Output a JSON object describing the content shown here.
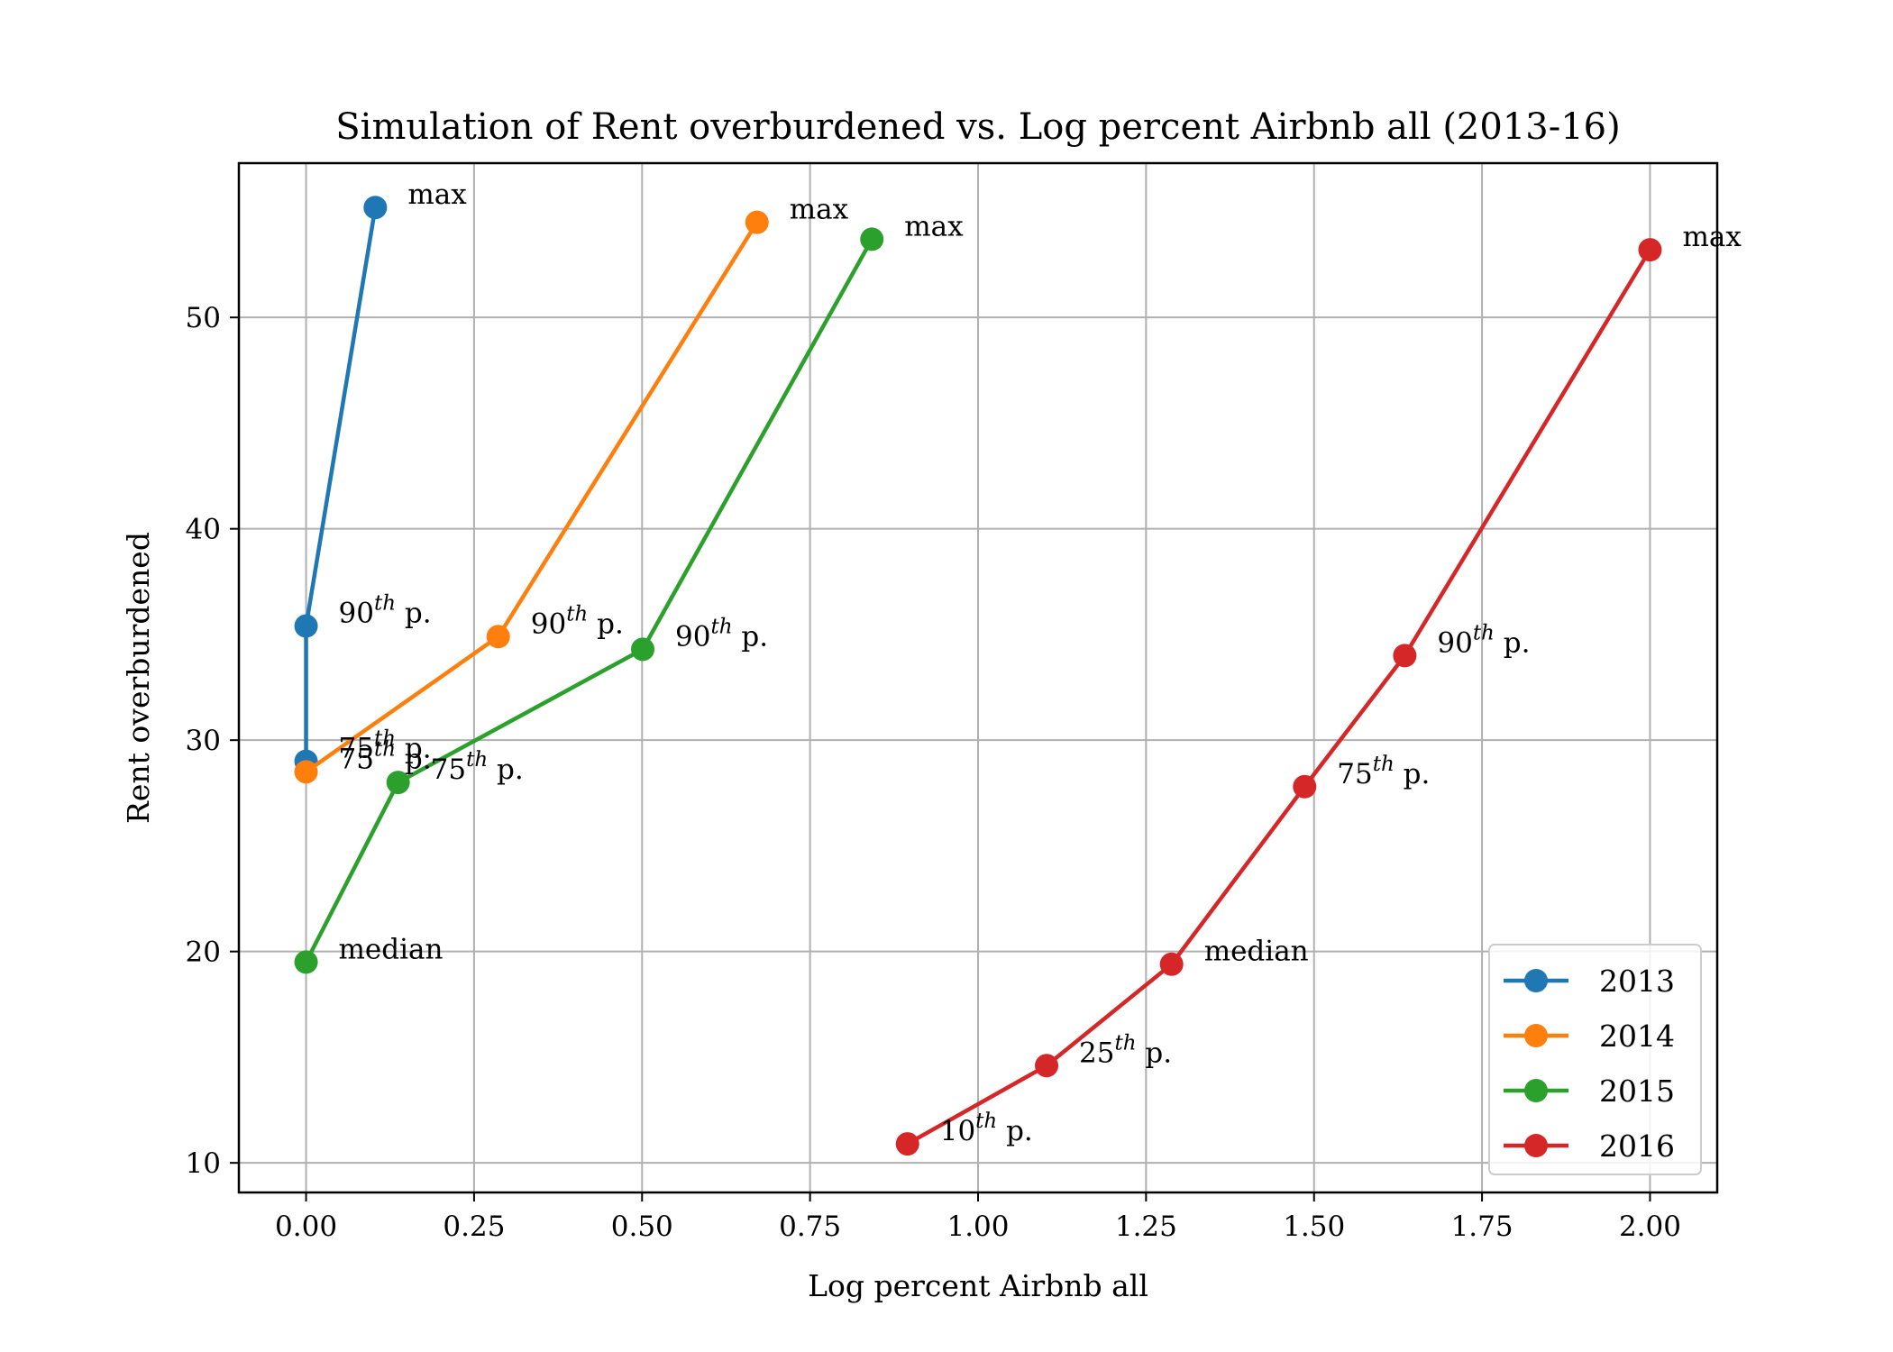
{
  "chart_data": {
    "type": "line",
    "title": "Simulation of Rent overburdened vs. Log percent Airbnb all (2013-16)",
    "xlabel": "Log percent Airbnb all",
    "ylabel": "Rent overburdened",
    "xlim": [
      -0.1,
      2.1
    ],
    "ylim": [
      8.6,
      57.3
    ],
    "xticks": [
      0.0,
      0.25,
      0.5,
      0.75,
      1.0,
      1.25,
      1.5,
      1.75,
      2.0
    ],
    "xtick_labels": [
      "0.00",
      "0.25",
      "0.50",
      "0.75",
      "1.00",
      "1.25",
      "1.50",
      "1.75",
      "2.00"
    ],
    "yticks": [
      10,
      20,
      30,
      40,
      50
    ],
    "ytick_labels": [
      "10",
      "20",
      "30",
      "40",
      "50"
    ],
    "grid": true,
    "legend_position": "lower-right",
    "series": [
      {
        "name": "2013",
        "color": "#1f77b4",
        "points": [
          {
            "x": 0.0,
            "y": 29.0,
            "label": "75",
            "sup": "th",
            "suffix": " p."
          },
          {
            "x": 0.0,
            "y": 35.4,
            "label": "90",
            "sup": "th",
            "suffix": " p."
          },
          {
            "x": 0.103,
            "y": 55.2,
            "label": "max",
            "sup": "",
            "suffix": ""
          }
        ]
      },
      {
        "name": "2014",
        "color": "#ff7f0e",
        "points": [
          {
            "x": 0.0,
            "y": 28.5,
            "label": "75",
            "sup": "th",
            "suffix": " p."
          },
          {
            "x": 0.286,
            "y": 34.9,
            "label": "90",
            "sup": "th",
            "suffix": " p."
          },
          {
            "x": 0.671,
            "y": 54.5,
            "label": "max",
            "sup": "",
            "suffix": ""
          }
        ]
      },
      {
        "name": "2015",
        "color": "#2ca02c",
        "points": [
          {
            "x": 0.0,
            "y": 19.5,
            "label": "median",
            "sup": "",
            "suffix": ""
          },
          {
            "x": 0.137,
            "y": 28.0,
            "label": "75",
            "sup": "th",
            "suffix": " p."
          },
          {
            "x": 0.501,
            "y": 34.3,
            "label": "90",
            "sup": "th",
            "suffix": " p."
          },
          {
            "x": 0.842,
            "y": 53.7,
            "label": "max",
            "sup": "",
            "suffix": ""
          }
        ]
      },
      {
        "name": "2016",
        "color": "#d62728",
        "points": [
          {
            "x": 0.895,
            "y": 10.9,
            "label": "10",
            "sup": "th",
            "suffix": " p."
          },
          {
            "x": 1.102,
            "y": 14.6,
            "label": "25",
            "sup": "th",
            "suffix": " p."
          },
          {
            "x": 1.288,
            "y": 19.4,
            "label": "median",
            "sup": "",
            "suffix": ""
          },
          {
            "x": 1.486,
            "y": 27.8,
            "label": "75",
            "sup": "th",
            "suffix": " p."
          },
          {
            "x": 1.635,
            "y": 34.0,
            "label": "90",
            "sup": "th",
            "suffix": " p."
          },
          {
            "x": 2.0,
            "y": 53.2,
            "label": "max",
            "sup": "",
            "suffix": ""
          }
        ]
      }
    ]
  }
}
